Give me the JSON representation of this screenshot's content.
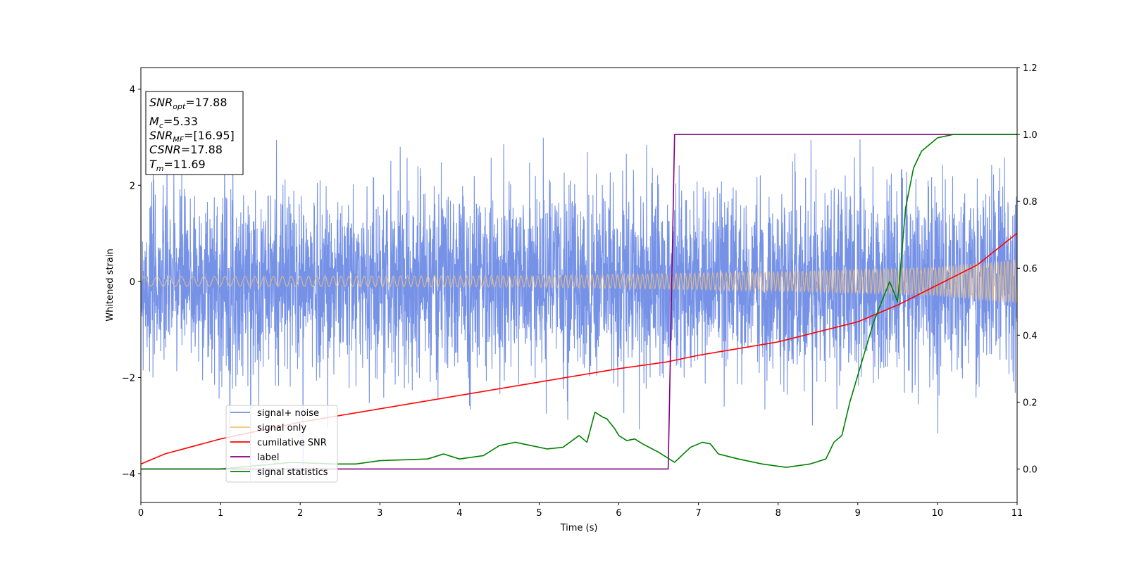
{
  "chart_data": {
    "type": "line",
    "xlabel": "Time (s)",
    "ylabel": "Whitened strain",
    "xlim": [
      0,
      11
    ],
    "ylim_left": [
      -4.6,
      4.45
    ],
    "ylim_right": [
      -0.1,
      1.2
    ],
    "xticks": [
      "0",
      "1",
      "2",
      "3",
      "4",
      "5",
      "6",
      "7",
      "8",
      "9",
      "10",
      "11"
    ],
    "yticks_left": [
      "−4",
      "−2",
      "0",
      "2",
      "4"
    ],
    "yticks_right": [
      "0.0",
      "0.2",
      "0.4",
      "0.6",
      "0.8",
      "1.0",
      "1.2"
    ],
    "legend_location": "lower-left",
    "annotation": {
      "snr_opt": {
        "base": "SNR",
        "sub": "opt",
        "value": "=17.88"
      },
      "mc": {
        "base": "M",
        "sub": "c",
        "value": "=5.33"
      },
      "snr_mf": {
        "base": "SNR",
        "sub": "MF",
        "value": "=[16.95]"
      },
      "csnr": {
        "base": "CSNR",
        "value": "=17.88"
      },
      "tm": {
        "base": "T",
        "sub": "m",
        "value": "=11.69"
      }
    },
    "series": [
      {
        "name": "signal+ noise",
        "color": "#6f8ce6",
        "axis": "left",
        "description": "noise std ~1.0, peaks about ±3.5"
      },
      {
        "name": "signal only",
        "color": "#f4c07a",
        "axis": "left",
        "amplitude_envelope": {
          "x": [
            0,
            5,
            8,
            10,
            11
          ],
          "y": [
            0.1,
            0.12,
            0.2,
            0.3,
            0.46
          ]
        }
      },
      {
        "name": "cumilative SNR",
        "color": "#ff0000",
        "axis": "right",
        "x": [
          0,
          0.3,
          1,
          2,
          3,
          4,
          5,
          6,
          6.6,
          7,
          8,
          9,
          9.5,
          10,
          10.5,
          11
        ],
        "y": [
          0.015,
          0.045,
          0.09,
          0.14,
          0.18,
          0.22,
          0.26,
          0.3,
          0.32,
          0.34,
          0.38,
          0.44,
          0.49,
          0.55,
          0.61,
          0.705
        ]
      },
      {
        "name": "label",
        "color": "#800080",
        "axis": "right",
        "x": [
          0,
          6.62,
          6.7,
          11
        ],
        "y": [
          0,
          0,
          1,
          1
        ]
      },
      {
        "name": "signal statistics",
        "color": "#008000",
        "axis": "right",
        "x": [
          0,
          1,
          1.9,
          2.4,
          2.7,
          3,
          3.6,
          3.8,
          4,
          4.3,
          4.5,
          4.7,
          4.9,
          5.1,
          5.3,
          5.5,
          5.6,
          5.7,
          5.8,
          5.85,
          5.95,
          6,
          6.1,
          6.2,
          6.3,
          6.5,
          6.7,
          6.9,
          7.05,
          7.15,
          7.25,
          7.5,
          7.8,
          8.1,
          8.4,
          8.6,
          8.7,
          8.8,
          8.9,
          9,
          9.1,
          9.2,
          9.3,
          9.4,
          9.5,
          9.6,
          9.7,
          9.8,
          9.9,
          10,
          10.2,
          10.5,
          10.8,
          11
        ],
        "y": [
          0,
          0,
          0.02,
          0.015,
          0.015,
          0.025,
          0.03,
          0.045,
          0.03,
          0.04,
          0.07,
          0.08,
          0.07,
          0.06,
          0.065,
          0.1,
          0.08,
          0.17,
          0.155,
          0.15,
          0.12,
          0.1,
          0.085,
          0.09,
          0.075,
          0.05,
          0.02,
          0.065,
          0.08,
          0.075,
          0.045,
          0.03,
          0.015,
          0.005,
          0.015,
          0.03,
          0.08,
          0.1,
          0.2,
          0.28,
          0.36,
          0.44,
          0.5,
          0.56,
          0.5,
          0.78,
          0.9,
          0.95,
          0.97,
          0.99,
          1.0,
          1.0,
          1.0,
          1.0
        ]
      }
    ]
  }
}
